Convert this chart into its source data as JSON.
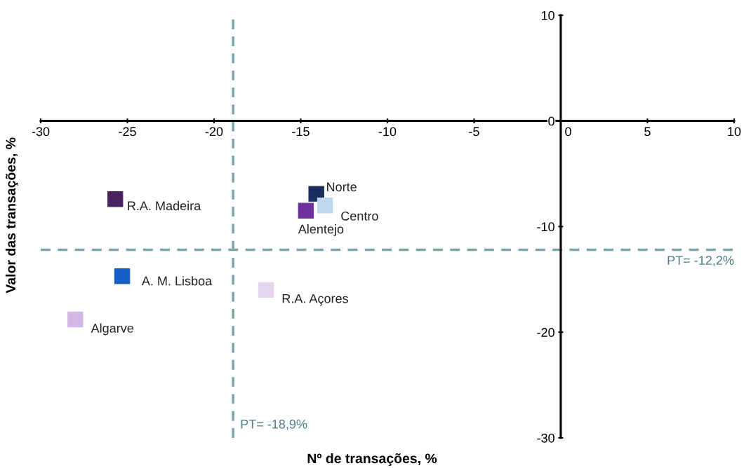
{
  "chart_data": {
    "type": "scatter",
    "xlabel": "Nº de transações, %",
    "ylabel": "Valor das transações, %",
    "xlim": [
      -30,
      10
    ],
    "xticks": [
      -30,
      -25,
      -20,
      -15,
      -10,
      -5,
      0,
      5,
      10
    ],
    "ylim": [
      -30,
      10
    ],
    "yticks": [
      -30,
      -20,
      -10,
      0,
      10
    ],
    "marker": "square",
    "grid": false,
    "legend": false,
    "series": [
      {
        "name": "R.A. Madeira",
        "color": "#4b2360",
        "x": [
          -25.7
        ],
        "values": [
          -7.4
        ]
      },
      {
        "name": "Norte",
        "color": "#1a2f5e",
        "x": [
          -14.1
        ],
        "values": [
          -6.9
        ]
      },
      {
        "name": "Centro",
        "color": "#bdd7ee",
        "x": [
          -13.6
        ],
        "values": [
          -8.0
        ]
      },
      {
        "name": "Alentejo",
        "color": "#7030a0",
        "x": [
          -14.7
        ],
        "values": [
          -8.5
        ]
      },
      {
        "name": "A. M. Lisboa",
        "color": "#1560c8",
        "x": [
          -25.3
        ],
        "values": [
          -14.7
        ]
      },
      {
        "name": "R.A. Açores",
        "color": "#e6d5ee",
        "x": [
          -17.0
        ],
        "values": [
          -16.0
        ]
      },
      {
        "name": "Algarve",
        "color": "#d3b8e6",
        "x": [
          -28.0
        ],
        "values": [
          -18.8
        ]
      }
    ],
    "ref_lines": [
      {
        "axis": "x",
        "value": -18.9,
        "label": "PT= -18,9%",
        "color": "#7ba3a8",
        "line_style": "dashed"
      },
      {
        "axis": "y",
        "value": -12.2,
        "label": "PT= -12,2%",
        "color": "#7ba3a8",
        "line_style": "dashed"
      }
    ]
  }
}
